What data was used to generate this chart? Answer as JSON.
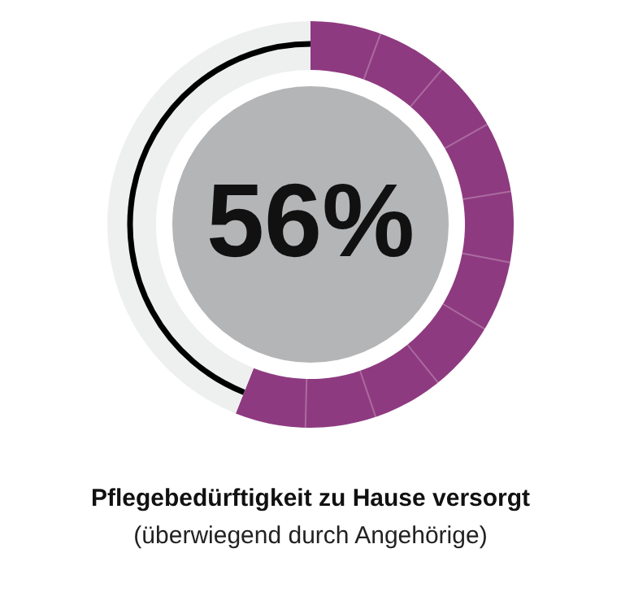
{
  "chart_data": {
    "type": "donut",
    "title": "Pflegebedürftigkeit zu Hause versorgt",
    "subtitle": "(überwiegend durch Angehörige)",
    "categories": [
      null,
      null
    ],
    "values": [
      56,
      44
    ],
    "colors": [
      "#8e3a80",
      "#eef0ef"
    ],
    "value_labels": [
      "56%",
      null
    ],
    "legend": false
  }
}
